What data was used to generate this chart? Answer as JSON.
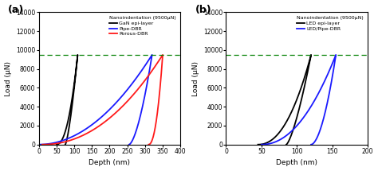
{
  "panel_a": {
    "title": "Nanoindentation (9500μN)",
    "xlabel": "Depth (nm)",
    "ylabel": "Load (μN)",
    "xlim": [
      0,
      400
    ],
    "ylim": [
      0,
      14000
    ],
    "xticks": [
      0,
      50,
      100,
      150,
      200,
      250,
      300,
      350,
      400
    ],
    "yticks": [
      0,
      2000,
      4000,
      6000,
      8000,
      10000,
      12000,
      14000
    ],
    "dashed_y": 9500,
    "label": "(a)",
    "legend": [
      "GaN epi-layer",
      "Pipe-DBR",
      "Porous-DBR"
    ],
    "colors": [
      "#000000",
      "#1a1aff",
      "#ff1a1a"
    ],
    "gan_load": {
      "d_start": 50,
      "d_peak": 110,
      "load_max": 9500,
      "n": 2.2
    },
    "gan_unload": {
      "d_peak": 110,
      "d_res": 75,
      "load_max": 9500,
      "n": 1.4
    },
    "pipe_load": {
      "d_start": 0,
      "d_peak": 320,
      "load_max": 9500,
      "n": 2.0
    },
    "pipe_unload": {
      "d_peak": 320,
      "d_res": 255,
      "load_max": 9500,
      "n": 1.6
    },
    "porous_load": {
      "d_start": 10,
      "d_peak": 350,
      "load_max": 9500,
      "n": 2.1
    },
    "porous_unload": {
      "d_peak": 350,
      "d_res": 310,
      "load_max": 9500,
      "n": 2.2
    }
  },
  "panel_b": {
    "title": "Nanoindentation (9500μN)",
    "xlabel": "Depth (nm)",
    "ylabel": "Load (μN)",
    "xlim": [
      0,
      200
    ],
    "ylim": [
      0,
      14000
    ],
    "xticks": [
      0,
      50,
      100,
      150,
      200
    ],
    "yticks": [
      0,
      2000,
      4000,
      6000,
      8000,
      10000,
      12000,
      14000
    ],
    "dashed_y": 9500,
    "label": "(b)",
    "legend": [
      "LED epi-layer",
      "LED/Pipe-DBR"
    ],
    "colors": [
      "#000000",
      "#1a1aff"
    ],
    "led_load": {
      "d_start": 45,
      "d_peak": 120,
      "load_max": 9500,
      "n": 2.2
    },
    "led_unload": {
      "d_peak": 120,
      "d_res": 85,
      "load_max": 9500,
      "n": 1.4
    },
    "ledpipe_load": {
      "d_start": 50,
      "d_peak": 155,
      "load_max": 9500,
      "n": 2.1
    },
    "ledpipe_unload": {
      "d_peak": 155,
      "d_res": 120,
      "load_max": 9500,
      "n": 1.8
    }
  },
  "fig_width": 4.74,
  "fig_height": 2.15,
  "dpi": 100
}
